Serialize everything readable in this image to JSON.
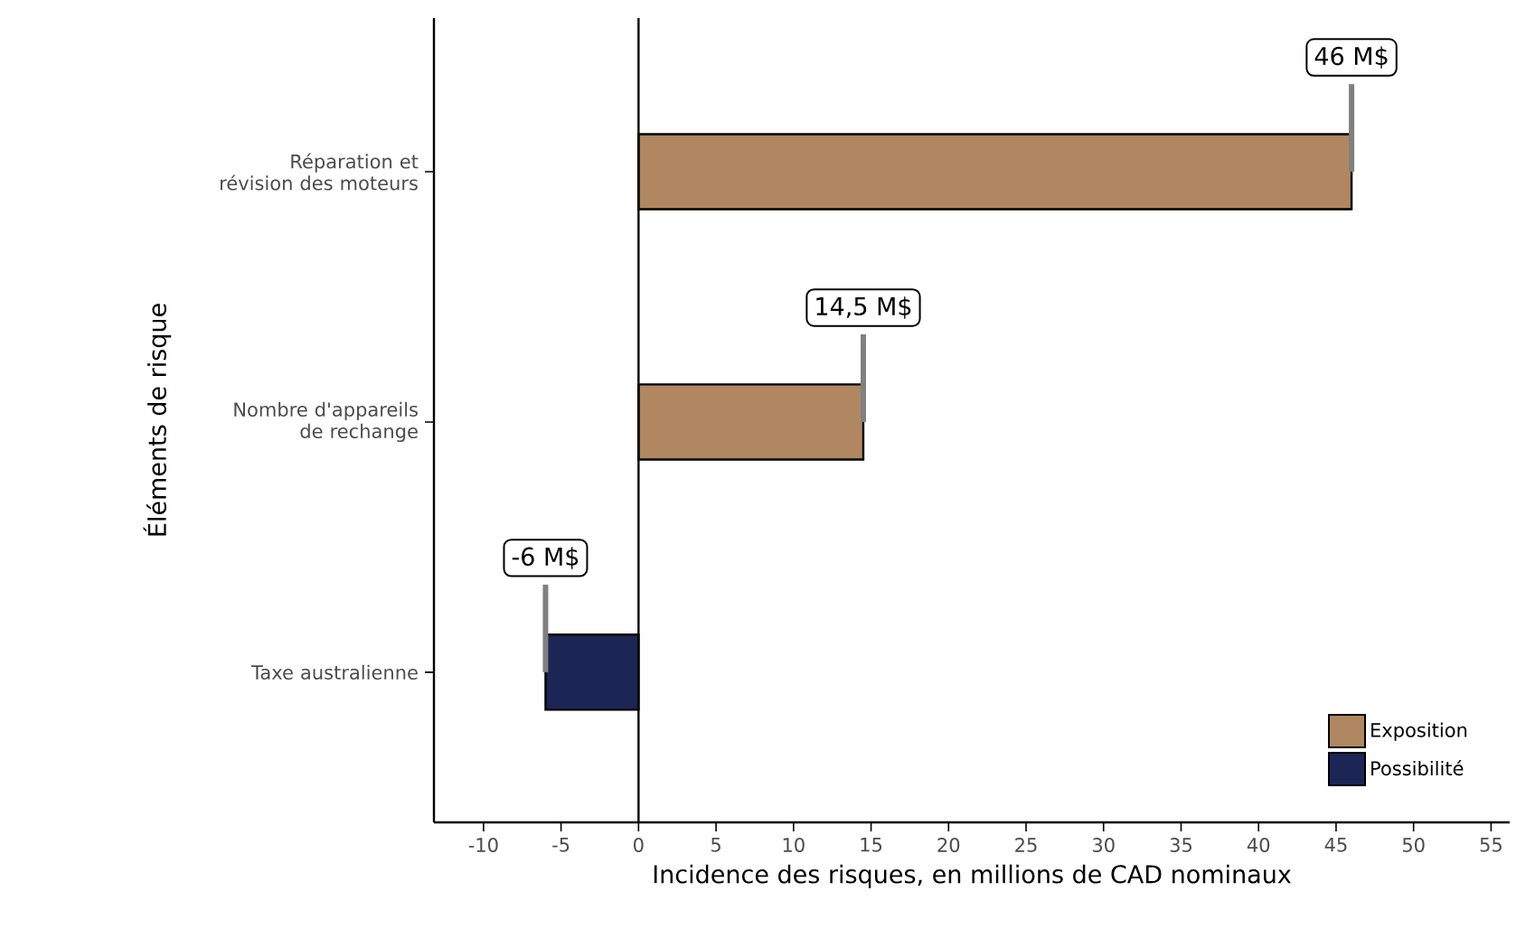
{
  "chart_data": {
    "type": "bar",
    "orientation": "horizontal",
    "xlabel": "Incidence des risques, en millions de CAD nominaux",
    "ylabel": "Éléments de risque",
    "categories": [
      "Réparation et révision des moteurs",
      "Nombre d'appareils de rechange",
      "Taxe australienne"
    ],
    "series": [
      {
        "name": "Exposition",
        "color": "#b08760",
        "values": [
          46,
          14.5,
          null
        ],
        "value_labels": [
          "46 M$",
          "14,5 M$",
          null
        ]
      },
      {
        "name": "Possibilité",
        "color": "#1c2655",
        "values": [
          null,
          null,
          -6
        ],
        "value_labels": [
          null,
          null,
          "-6 M$"
        ]
      }
    ],
    "xlim": [
      -13.2,
      56.2
    ],
    "xticks": [
      -10,
      -5,
      0,
      5,
      10,
      15,
      20,
      25,
      30,
      35,
      40,
      45,
      50,
      55
    ],
    "ref_lines": [
      {
        "axis": "x",
        "value": 0,
        "color": "#000000"
      }
    ],
    "legend": "bottom right",
    "grid": false
  }
}
